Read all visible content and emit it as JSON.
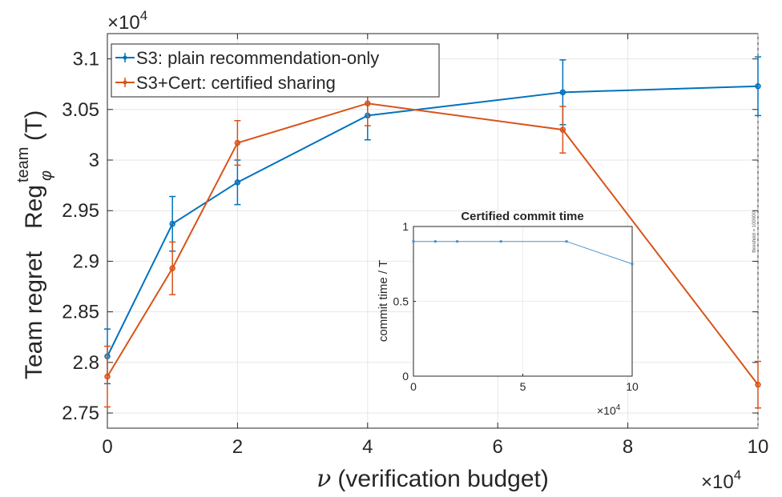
{
  "chart_data": [
    {
      "type": "line",
      "title": "",
      "xlabel_symbol": "ν",
      "xlabel": "(verification budget)",
      "ylabel_prefix": "Team regret",
      "ylabel_reg": "Reg",
      "ylabel_sup": "team",
      "ylabel_sub": "φ",
      "ylabel_suffix": "(T)",
      "x_multiplier_base": "×10",
      "x_multiplier_exp": "4",
      "y_multiplier_base": "×10",
      "y_multiplier_exp": "4",
      "xlim": [
        0,
        10
      ],
      "ylim": [
        2.735,
        3.125
      ],
      "x_ticks": [
        0,
        2,
        4,
        6,
        8,
        10
      ],
      "x_tick_labels": [
        "0",
        "2",
        "4",
        "6",
        "8",
        "10"
      ],
      "y_ticks": [
        2.75,
        2.8,
        2.85,
        2.9,
        2.95,
        3.0,
        3.05,
        3.1
      ],
      "y_tick_labels": [
        "2.75",
        "2.8",
        "2.85",
        "2.9",
        "2.95",
        "3",
        "3.05",
        "3.1"
      ],
      "grid": true,
      "legend_position": "top-left",
      "series": [
        {
          "name": "S3: plain recommendation-only",
          "color": "#0072BD",
          "x": [
            0,
            1,
            2,
            4,
            7,
            10
          ],
          "y": [
            2.806,
            2.937,
            2.978,
            3.044,
            3.067,
            3.073
          ],
          "err": [
            0.027,
            0.027,
            0.022,
            0.024,
            0.032,
            0.029
          ]
        },
        {
          "name": "S3+Cert: certified sharing",
          "color": "#D95319",
          "x": [
            0,
            1,
            2,
            4,
            7,
            10
          ],
          "y": [
            2.786,
            2.893,
            3.017,
            3.056,
            3.03,
            2.778
          ],
          "err": [
            0.03,
            0.026,
            0.022,
            0.022,
            0.023,
            0.023
          ]
        }
      ],
      "threshold_label": "threshold = 100000",
      "threshold_x": 10
    },
    {
      "type": "line",
      "title": "Certified commit time",
      "xlabel": "",
      "ylabel": "commit time / T",
      "x_multiplier_base": "×10",
      "x_multiplier_exp": "4",
      "xlim": [
        0,
        10
      ],
      "ylim": [
        0,
        1
      ],
      "x_ticks": [
        0,
        5,
        10
      ],
      "x_tick_labels": [
        "0",
        "5",
        "10"
      ],
      "y_ticks": [
        0,
        0.5,
        1
      ],
      "y_tick_labels": [
        "0",
        "0.5",
        "1"
      ],
      "grid": true,
      "series": [
        {
          "color": "#4A90C8",
          "x": [
            0,
            1,
            2,
            4,
            7,
            10
          ],
          "y": [
            0.9,
            0.9,
            0.9,
            0.9,
            0.9,
            0.75
          ]
        }
      ]
    }
  ]
}
